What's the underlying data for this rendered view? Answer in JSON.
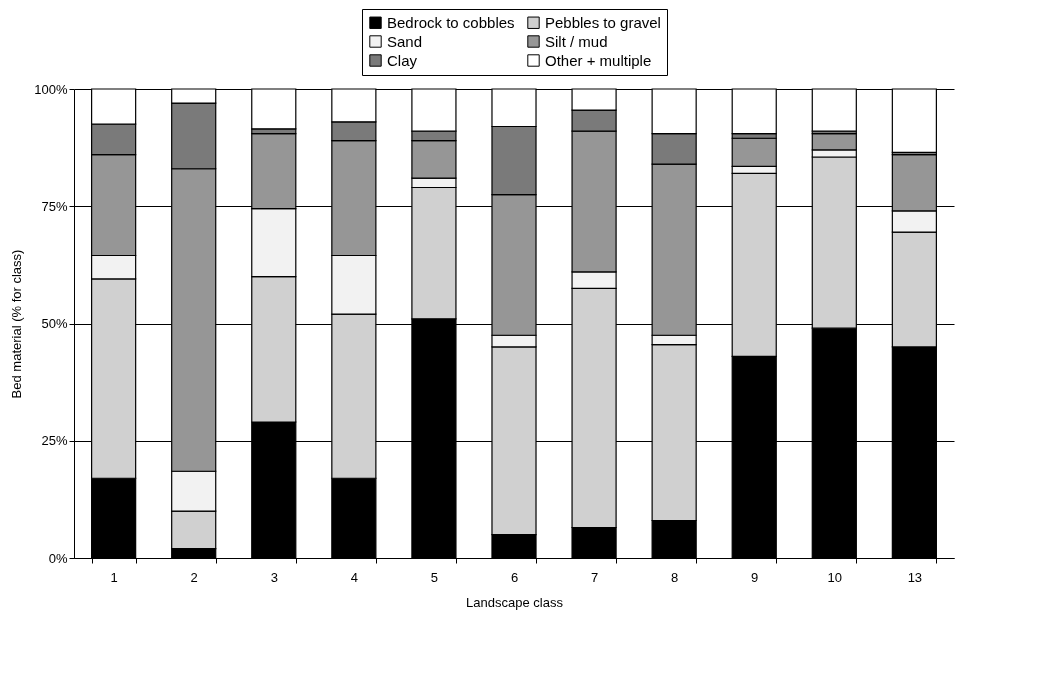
{
  "chart_data": {
    "type": "bar",
    "stacked": true,
    "xlabel": "Landscape class",
    "ylabel": "Bed material (% for class)",
    "categories": [
      "1",
      "2",
      "3",
      "4",
      "5",
      "6",
      "7",
      "8",
      "9",
      "10",
      "13"
    ],
    "series": [
      {
        "name": "Bedrock to cobbles",
        "color": "#000000",
        "values": [
          17,
          2,
          29,
          17,
          51,
          5,
          6.5,
          8,
          43,
          49,
          45
        ]
      },
      {
        "name": "Pebbles to gravel",
        "color": "#d0d0d0",
        "values": [
          42.5,
          8,
          31,
          35,
          28,
          40,
          51,
          37.5,
          39,
          36.5,
          24.5
        ]
      },
      {
        "name": "Sand",
        "color": "#f2f2f2",
        "values": [
          5,
          8.5,
          14.5,
          12.5,
          2,
          2.5,
          3.5,
          2,
          1.5,
          1.5,
          4.5
        ]
      },
      {
        "name": "Silt  / mud",
        "color": "#969696",
        "values": [
          21.5,
          64.5,
          16,
          24.5,
          8,
          30,
          30,
          36.5,
          6,
          3.5,
          12
        ]
      },
      {
        "name": "Clay",
        "color": "#7a7a7a",
        "values": [
          6.5,
          14,
          1,
          4,
          2,
          14.5,
          4.5,
          6.5,
          1,
          0.5,
          0.5
        ]
      },
      {
        "name": "Other + multiple",
        "color": "#ffffff",
        "values": [
          7.5,
          3,
          8.5,
          7,
          9,
          8,
          4.5,
          9.5,
          9.5,
          9,
          13.5
        ]
      }
    ],
    "ylim": [
      0,
      100
    ],
    "yticks": [
      {
        "value": 0,
        "label": "0%"
      },
      {
        "value": 25,
        "label": "25%"
      },
      {
        "value": 50,
        "label": "50%"
      },
      {
        "value": 75,
        "label": "75%"
      },
      {
        "value": 100,
        "label": "100%"
      }
    ],
    "grid": "y",
    "legend": "top"
  }
}
